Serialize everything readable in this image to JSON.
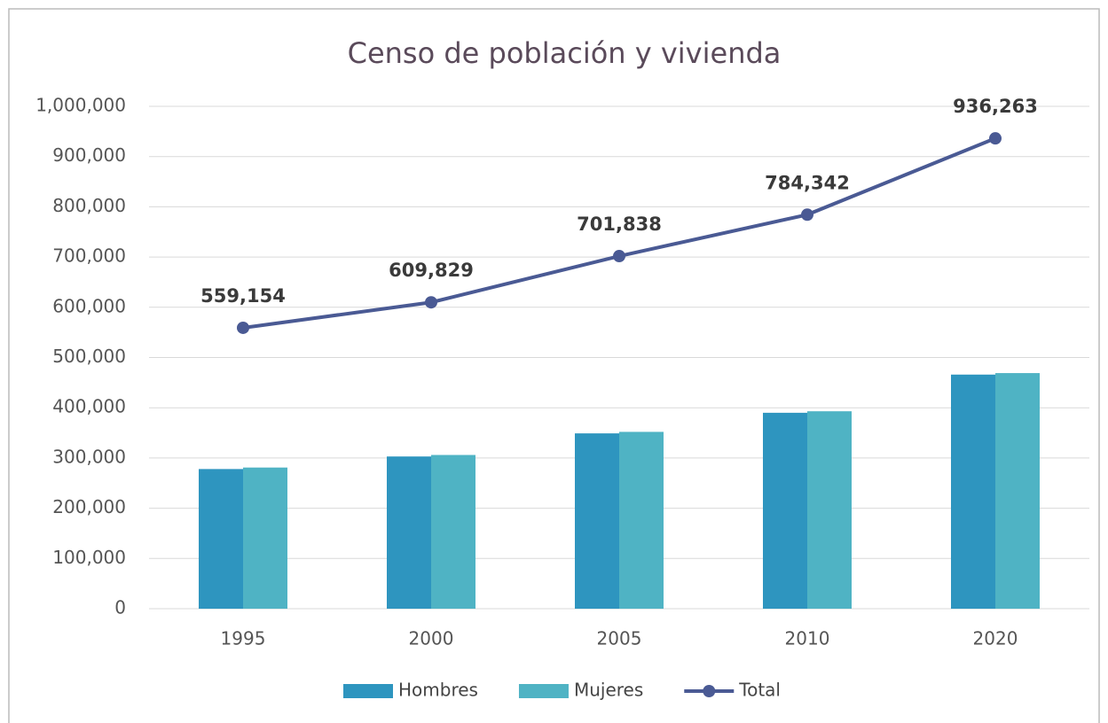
{
  "chart_data": {
    "type": "bar",
    "title": "Censo de población y vivienda",
    "categories": [
      "1995",
      "2000",
      "2005",
      "2010",
      "2020"
    ],
    "series": [
      {
        "name": "Hombres",
        "color": "#2e95bf",
        "values": [
          278000,
          303000,
          349000,
          390000,
          466000
        ]
      },
      {
        "name": "Mujeres",
        "color": "#4fb3c4",
        "values": [
          281000,
          306000,
          352000,
          393000,
          469000
        ]
      },
      {
        "name": "Total",
        "type": "line",
        "color": "#4a5a94",
        "values": [
          559154,
          609829,
          701838,
          784342,
          936263
        ],
        "value_labels": [
          "559,154",
          "609,829",
          "701,838",
          "784,342",
          "936,263"
        ]
      }
    ],
    "ylim": [
      0,
      1000000
    ],
    "yticks": [
      0,
      {
        "value": 100000,
        "label": "100,000"
      },
      {
        "value": 200000,
        "label": "200,000"
      },
      {
        "value": 300000,
        "label": "300,000"
      },
      {
        "value": 400000,
        "label": "400,000"
      },
      {
        "value": 500000,
        "label": "500,000"
      },
      {
        "value": 600000,
        "label": "600,000"
      },
      {
        "value": 700000,
        "label": "700,000"
      },
      {
        "value": 800000,
        "label": "800,000"
      },
      {
        "value": 900000,
        "label": "900,000"
      },
      {
        "value": 1000000,
        "label": "1,000,000"
      }
    ],
    "grid": true,
    "legend": "bottom"
  }
}
